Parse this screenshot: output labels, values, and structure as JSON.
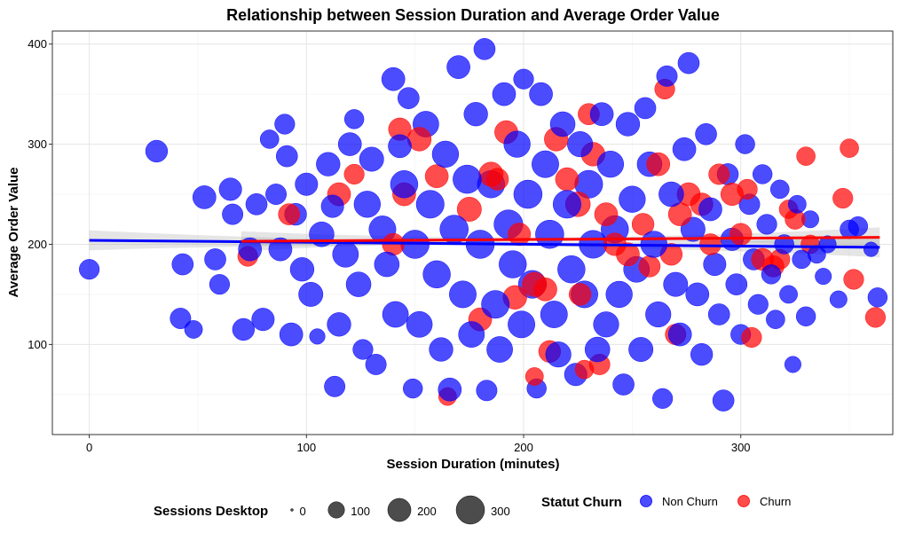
{
  "chart_data": {
    "type": "scatter",
    "title": "Relationship between Session Duration and Average Order Value",
    "xlabel": "Session Duration (minutes)",
    "ylabel": "Average Order Value",
    "xlim": [
      -17,
      370
    ],
    "ylim": [
      10,
      413
    ],
    "xticks": [
      0,
      100,
      200,
      300
    ],
    "yticks": [
      100,
      200,
      300,
      400
    ],
    "grid": true,
    "legend_position": "bottom",
    "size_legend": {
      "title": "Sessions Desktop",
      "entries": [
        {
          "label": "0",
          "value": 0
        },
        {
          "label": "100",
          "value": 100
        },
        {
          "label": "200",
          "value": 200
        },
        {
          "label": "300",
          "value": 300
        }
      ]
    },
    "color_legend": {
      "title": "Statut Churn",
      "entries": [
        {
          "label": "Non Churn",
          "color": "#0000ff"
        },
        {
          "label": "Churn",
          "color": "#ff0000"
        }
      ]
    },
    "series": [
      {
        "name": "Non Churn",
        "color": "#0000ff",
        "trend": {
          "x": [
            0,
            364
          ],
          "y": [
            204,
            197
          ]
        },
        "points": [
          [
            0,
            175,
            150
          ],
          [
            31,
            293,
            180
          ],
          [
            43,
            180,
            170
          ],
          [
            42,
            126,
            160
          ],
          [
            48,
            115,
            120
          ],
          [
            53,
            247,
            200
          ],
          [
            58,
            185,
            170
          ],
          [
            60,
            160,
            150
          ],
          [
            65,
            255,
            190
          ],
          [
            66,
            230,
            160
          ],
          [
            71,
            115,
            180
          ],
          [
            74,
            195,
            200
          ],
          [
            77,
            240,
            170
          ],
          [
            80,
            125,
            190
          ],
          [
            83,
            305,
            130
          ],
          [
            86,
            250,
            160
          ],
          [
            88,
            195,
            200
          ],
          [
            90,
            320,
            150
          ],
          [
            91,
            288,
            170
          ],
          [
            93,
            110,
            200
          ],
          [
            95,
            230,
            180
          ],
          [
            98,
            175,
            210
          ],
          [
            100,
            260,
            190
          ],
          [
            102,
            150,
            220
          ],
          [
            105,
            108,
            90
          ],
          [
            107,
            210,
            230
          ],
          [
            110,
            280,
            210
          ],
          [
            112,
            238,
            190
          ],
          [
            113,
            58,
            160
          ],
          [
            115,
            120,
            210
          ],
          [
            118,
            190,
            250
          ],
          [
            120,
            300,
            200
          ],
          [
            122,
            325,
            140
          ],
          [
            124,
            160,
            230
          ],
          [
            126,
            95,
            150
          ],
          [
            128,
            240,
            260
          ],
          [
            130,
            285,
            220
          ],
          [
            132,
            80,
            160
          ],
          [
            135,
            215,
            270
          ],
          [
            137,
            180,
            230
          ],
          [
            140,
            365,
            200
          ],
          [
            141,
            130,
            250
          ],
          [
            143,
            298,
            200
          ],
          [
            145,
            260,
            280
          ],
          [
            147,
            346,
            170
          ],
          [
            149,
            56,
            140
          ],
          [
            150,
            200,
            300
          ],
          [
            152,
            120,
            250
          ],
          [
            155,
            320,
            250
          ],
          [
            157,
            240,
            290
          ],
          [
            160,
            170,
            280
          ],
          [
            162,
            95,
            210
          ],
          [
            164,
            290,
            260
          ],
          [
            166,
            55,
            200
          ],
          [
            168,
            215,
            300
          ],
          [
            170,
            377,
            200
          ],
          [
            172,
            150,
            270
          ],
          [
            174,
            265,
            300
          ],
          [
            176,
            110,
            250
          ],
          [
            178,
            330,
            210
          ],
          [
            180,
            200,
            300
          ],
          [
            182,
            395,
            170
          ],
          [
            183,
            54,
            160
          ],
          [
            185,
            260,
            280
          ],
          [
            187,
            140,
            290
          ],
          [
            189,
            95,
            250
          ],
          [
            191,
            350,
            200
          ],
          [
            193,
            220,
            310
          ],
          [
            195,
            180,
            280
          ],
          [
            197,
            300,
            260
          ],
          [
            199,
            120,
            270
          ],
          [
            200,
            365,
            150
          ],
          [
            202,
            250,
            300
          ],
          [
            204,
            160,
            290
          ],
          [
            206,
            56,
            140
          ],
          [
            208,
            350,
            200
          ],
          [
            210,
            280,
            270
          ],
          [
            212,
            210,
            300
          ],
          [
            214,
            130,
            270
          ],
          [
            216,
            90,
            240
          ],
          [
            218,
            320,
            230
          ],
          [
            220,
            240,
            290
          ],
          [
            222,
            175,
            280
          ],
          [
            224,
            70,
            190
          ],
          [
            226,
            300,
            240
          ],
          [
            228,
            150,
            270
          ],
          [
            230,
            260,
            290
          ],
          [
            232,
            200,
            290
          ],
          [
            234,
            95,
            230
          ],
          [
            236,
            330,
            200
          ],
          [
            238,
            120,
            240
          ],
          [
            240,
            280,
            260
          ],
          [
            242,
            215,
            280
          ],
          [
            244,
            150,
            260
          ],
          [
            246,
            60,
            170
          ],
          [
            248,
            320,
            210
          ],
          [
            250,
            245,
            260
          ],
          [
            252,
            175,
            250
          ],
          [
            254,
            95,
            220
          ],
          [
            256,
            336,
            170
          ],
          [
            258,
            280,
            230
          ],
          [
            260,
            200,
            260
          ],
          [
            262,
            130,
            240
          ],
          [
            264,
            46,
            150
          ],
          [
            266,
            368,
            160
          ],
          [
            268,
            250,
            230
          ],
          [
            270,
            160,
            220
          ],
          [
            272,
            110,
            200
          ],
          [
            274,
            295,
            200
          ],
          [
            276,
            381,
            170
          ],
          [
            278,
            215,
            220
          ],
          [
            280,
            150,
            200
          ],
          [
            282,
            90,
            180
          ],
          [
            284,
            310,
            170
          ],
          [
            286,
            235,
            200
          ],
          [
            288,
            180,
            190
          ],
          [
            290,
            130,
            170
          ],
          [
            292,
            44,
            170
          ],
          [
            294,
            270,
            170
          ],
          [
            296,
            205,
            190
          ],
          [
            298,
            160,
            170
          ],
          [
            300,
            110,
            150
          ],
          [
            302,
            300,
            140
          ],
          [
            304,
            240,
            160
          ],
          [
            306,
            185,
            170
          ],
          [
            308,
            140,
            150
          ],
          [
            310,
            270,
            140
          ],
          [
            312,
            220,
            150
          ],
          [
            314,
            170,
            140
          ],
          [
            316,
            125,
            130
          ],
          [
            318,
            255,
            130
          ],
          [
            320,
            200,
            140
          ],
          [
            322,
            150,
            120
          ],
          [
            324,
            80,
            100
          ],
          [
            326,
            240,
            120
          ],
          [
            328,
            185,
            130
          ],
          [
            330,
            128,
            140
          ],
          [
            332,
            225,
            110
          ],
          [
            335,
            190,
            120
          ],
          [
            338,
            168,
            100
          ],
          [
            340,
            200,
            110
          ],
          [
            345,
            145,
            110
          ],
          [
            350,
            215,
            130
          ],
          [
            354,
            218,
            140
          ],
          [
            360,
            195,
            80
          ],
          [
            363,
            147,
            140
          ]
        ]
      },
      {
        "name": "Churn",
        "color": "#ff0000",
        "trend": {
          "x": [
            70,
            364
          ],
          "y": [
            203,
            207
          ]
        },
        "points": [
          [
            73,
            188,
            150
          ],
          [
            92,
            230,
            170
          ],
          [
            115,
            250,
            200
          ],
          [
            122,
            270,
            150
          ],
          [
            140,
            200,
            180
          ],
          [
            143,
            315,
            190
          ],
          [
            145,
            250,
            200
          ],
          [
            152,
            305,
            210
          ],
          [
            160,
            268,
            200
          ],
          [
            175,
            235,
            220
          ],
          [
            180,
            125,
            200
          ],
          [
            185,
            270,
            220
          ],
          [
            188,
            265,
            180
          ],
          [
            192,
            312,
            200
          ],
          [
            196,
            147,
            210
          ],
          [
            198,
            210,
            190
          ],
          [
            205,
            160,
            220
          ],
          [
            210,
            155,
            200
          ],
          [
            212,
            93,
            180
          ],
          [
            215,
            305,
            210
          ],
          [
            220,
            265,
            200
          ],
          [
            225,
            240,
            230
          ],
          [
            226,
            150,
            180
          ],
          [
            230,
            330,
            170
          ],
          [
            232,
            290,
            210
          ],
          [
            235,
            80,
            160
          ],
          [
            238,
            230,
            200
          ],
          [
            242,
            200,
            190
          ],
          [
            248,
            190,
            200
          ],
          [
            255,
            220,
            180
          ],
          [
            258,
            178,
            170
          ],
          [
            262,
            280,
            200
          ],
          [
            265,
            355,
            150
          ],
          [
            268,
            190,
            180
          ],
          [
            270,
            110,
            160
          ],
          [
            272,
            230,
            200
          ],
          [
            276,
            250,
            200
          ],
          [
            282,
            240,
            190
          ],
          [
            286,
            200,
            170
          ],
          [
            290,
            270,
            160
          ],
          [
            296,
            250,
            190
          ],
          [
            300,
            210,
            180
          ],
          [
            303,
            255,
            150
          ],
          [
            305,
            107,
            150
          ],
          [
            310,
            185,
            180
          ],
          [
            315,
            178,
            170
          ],
          [
            318,
            185,
            150
          ],
          [
            322,
            235,
            130
          ],
          [
            325,
            225,
            150
          ],
          [
            330,
            288,
            130
          ],
          [
            332,
            200,
            130
          ],
          [
            347,
            246,
            150
          ],
          [
            350,
            296,
            130
          ],
          [
            352,
            165,
            150
          ],
          [
            362,
            127,
            150
          ],
          [
            165,
            48,
            120
          ],
          [
            228,
            75,
            130
          ],
          [
            205,
            68,
            120
          ]
        ]
      }
    ]
  }
}
